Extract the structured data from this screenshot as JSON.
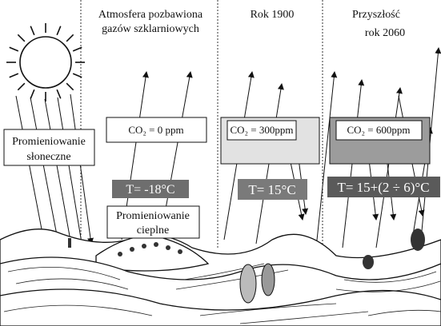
{
  "columns": [
    {
      "title_lines": [
        "Atmosfera pozbawiona",
        "gazów szklarniowych"
      ],
      "co2": "CO₂ = 0 ppm",
      "temperature": "T=  -18°C"
    },
    {
      "title_lines": [
        "Rok  1900"
      ],
      "co2": "CO₂ = 300ppm",
      "temperature": "T= 15°C"
    },
    {
      "title_lines": [
        "Przyszłość",
        "rok 2060"
      ],
      "co2": "CO₂ = 600ppm",
      "temperature": "T= 15+(2 ÷ 6)°C"
    }
  ],
  "solar_label": [
    "Promieniowanie",
    "słoneczne"
  ],
  "thermal_label": [
    "Promieniowanie",
    "cieplne"
  ]
}
